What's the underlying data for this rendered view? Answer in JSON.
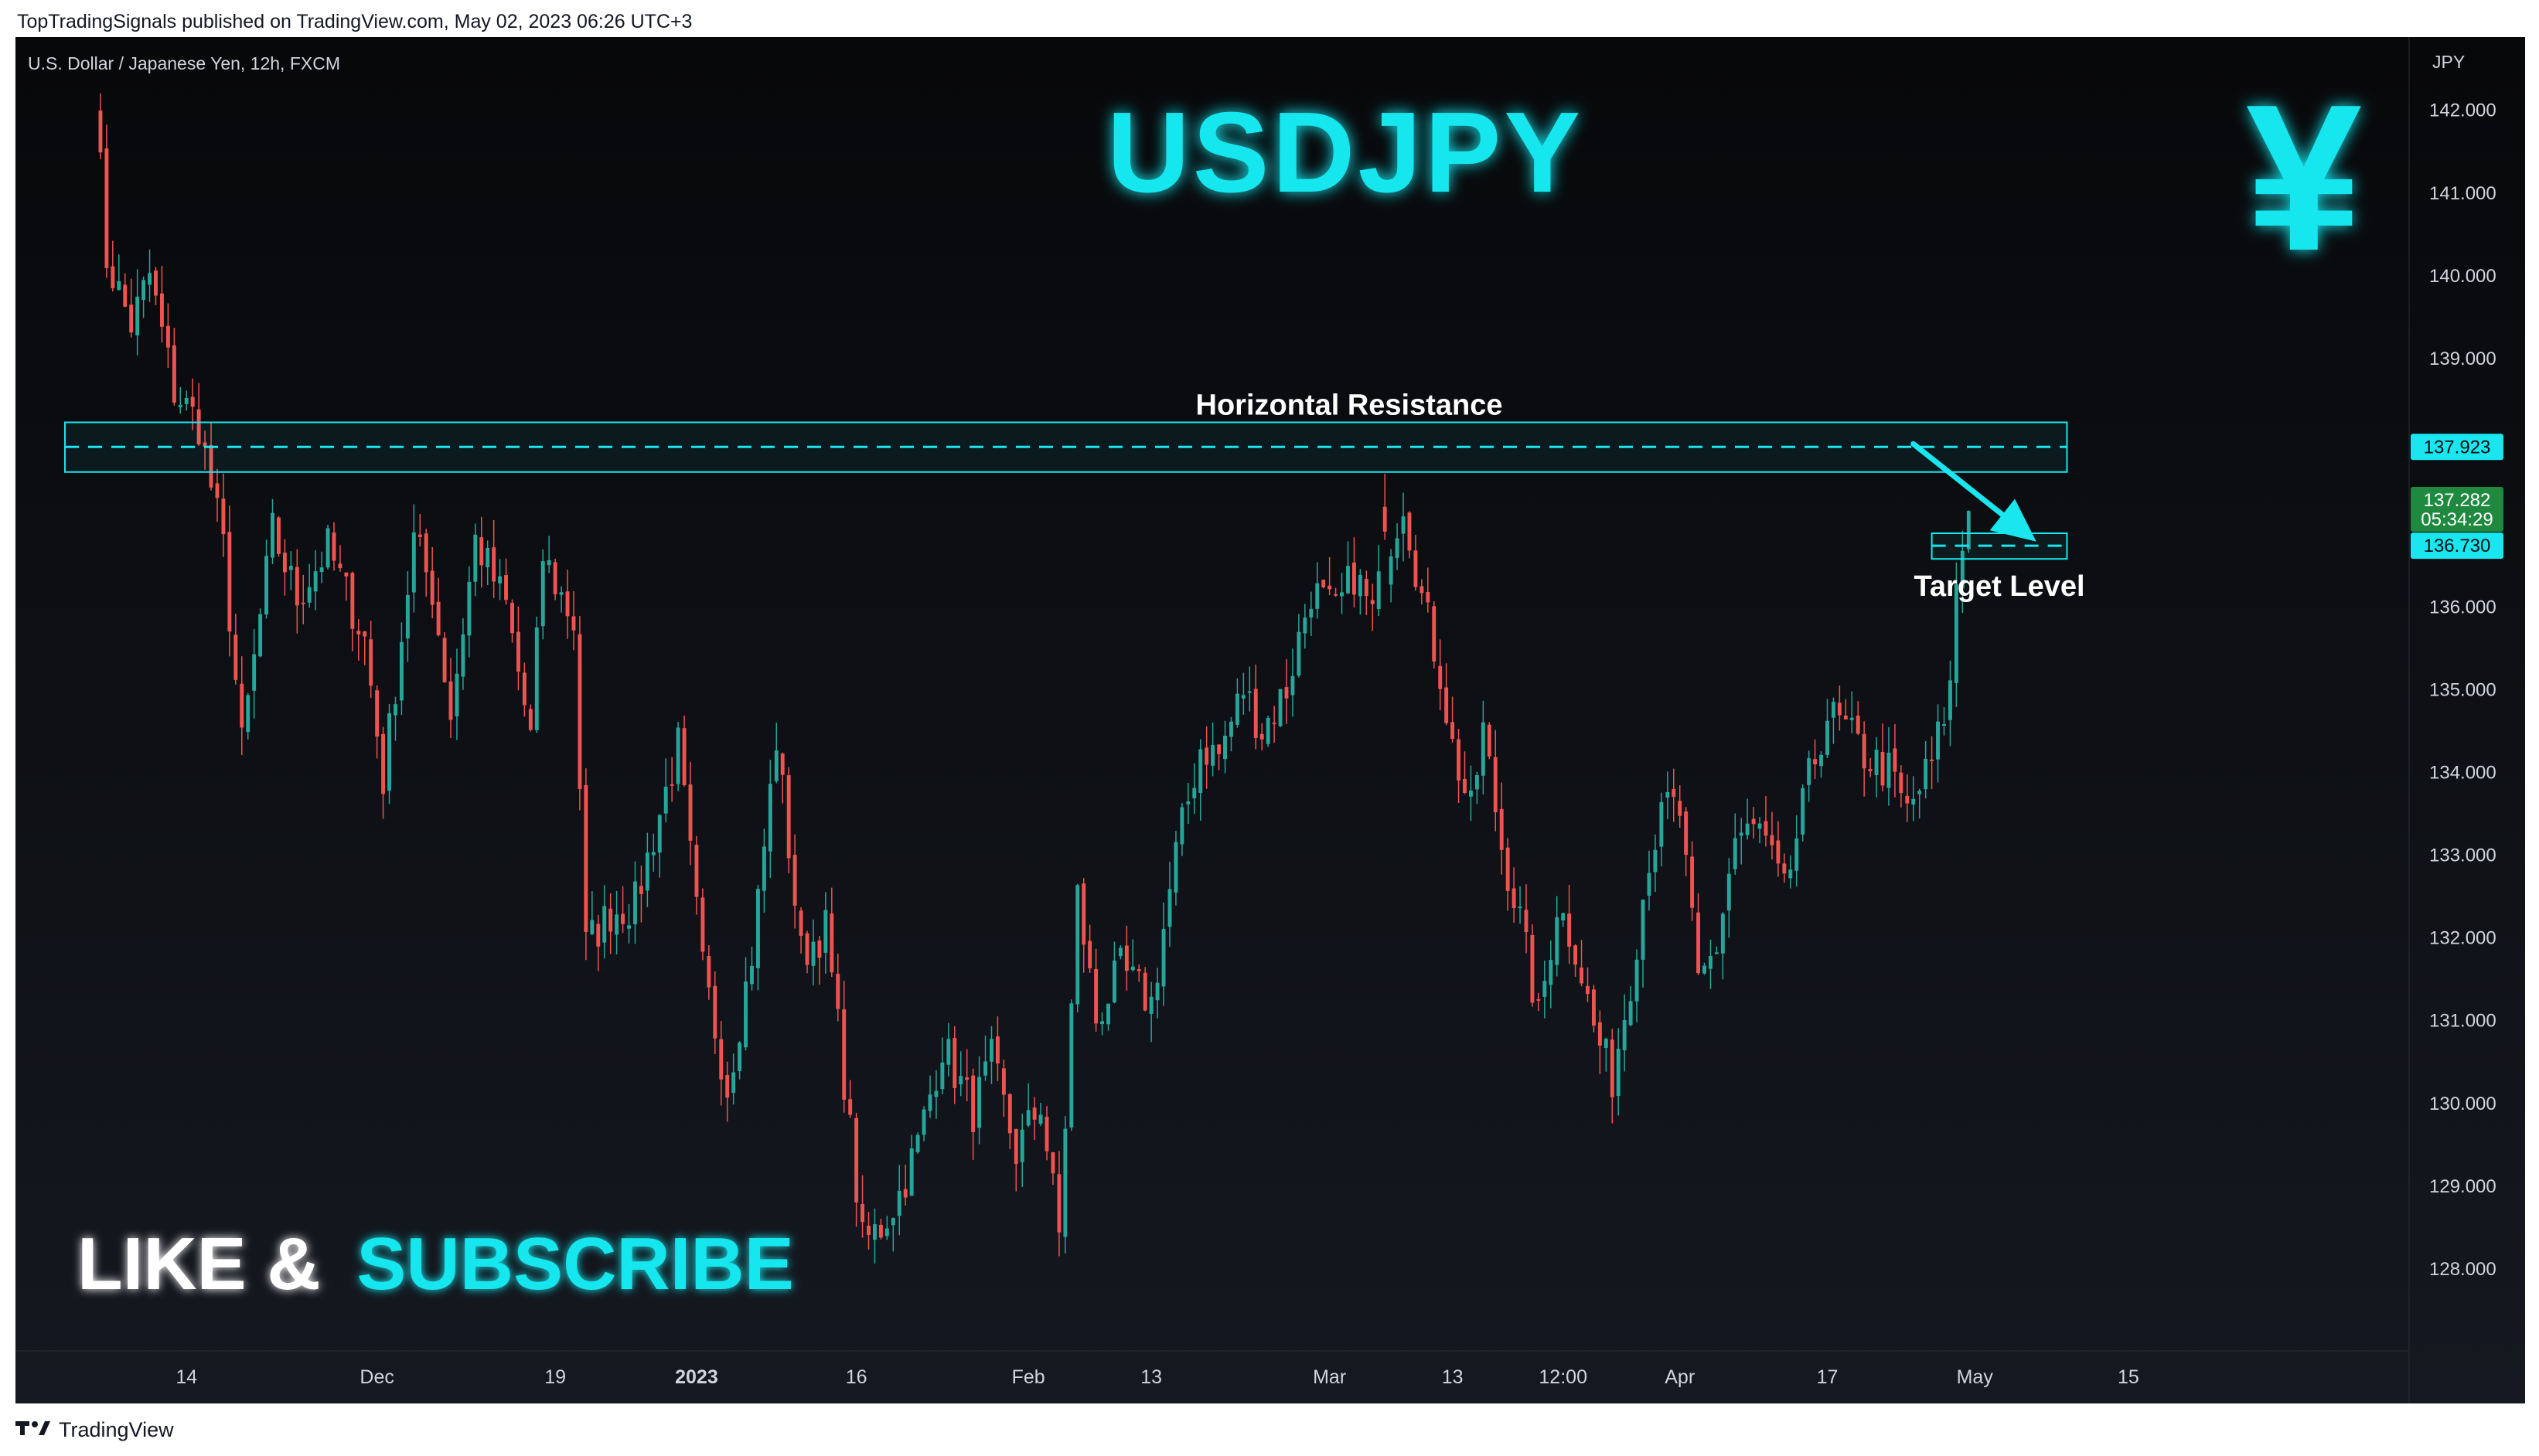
{
  "header": {
    "published": "TopTradingSignals published on TradingView.com, May 02, 2023 06:26 UTC+3"
  },
  "footer": {
    "logo_icon": "tradingview-logo-icon",
    "brand": "TradingView"
  },
  "colors": {
    "background": "#0e0f13",
    "up": "#26a69a",
    "down": "#ef5350",
    "accent": "#19e6ee",
    "text": "#d1d4dc",
    "last_price_badge": "#1f8a3f"
  },
  "chart_data": {
    "type": "candlestick",
    "symbol_label": "U.S. Dollar / Japanese Yen, 12h, FXCM",
    "title": "USDJPY",
    "currency_glyph": "¥",
    "currency_icon": "yen-icon",
    "promo": {
      "part1": "LIKE &",
      "part2": "SUBSCRIBE"
    },
    "y_axis": {
      "unit": "JPY",
      "range": [
        127.3,
        142.8
      ],
      "ticks": [
        "142.000",
        "141.000",
        "140.000",
        "139.000",
        "136.000",
        "135.000",
        "134.000",
        "133.000",
        "132.000",
        "131.000",
        "130.000",
        "129.000",
        "128.000"
      ]
    },
    "x_axis": {
      "range": [
        0,
        330
      ],
      "ticks": [
        {
          "label": "14",
          "x": 15
        },
        {
          "label": "Dec",
          "x": 46
        },
        {
          "label": "19",
          "x": 75
        },
        {
          "label": "2023",
          "x": 98
        },
        {
          "label": "16",
          "x": 124
        },
        {
          "label": "Feb",
          "x": 152
        },
        {
          "label": "13",
          "x": 172
        },
        {
          "label": "Mar",
          "x": 201
        },
        {
          "label": "13",
          "x": 221
        },
        {
          "label": "12:00",
          "x": 239
        },
        {
          "label": "Apr",
          "x": 258
        },
        {
          "label": "17",
          "x": 282
        },
        {
          "label": "May",
          "x": 306
        },
        {
          "label": "15",
          "x": 331
        }
      ]
    },
    "candles": [],
    "anchors": [
      [
        0,
        142.3
      ],
      [
        2,
        140.2
      ],
      [
        6,
        139.4
      ],
      [
        9,
        140.0
      ],
      [
        13,
        138.6
      ],
      [
        17,
        138.2
      ],
      [
        21,
        136.7
      ],
      [
        24,
        134.3
      ],
      [
        29,
        136.9
      ],
      [
        33,
        136.1
      ],
      [
        38,
        136.7
      ],
      [
        44,
        135.6
      ],
      [
        47,
        133.9
      ],
      [
        52,
        136.8
      ],
      [
        55,
        136.2
      ],
      [
        58,
        134.7
      ],
      [
        62,
        136.8
      ],
      [
        67,
        136.0
      ],
      [
        71,
        134.4
      ],
      [
        73,
        136.6
      ],
      [
        78,
        135.8
      ],
      [
        80,
        131.9
      ],
      [
        84,
        132.3
      ],
      [
        88,
        132.4
      ],
      [
        92,
        133.5
      ],
      [
        95,
        134.3
      ],
      [
        99,
        131.6
      ],
      [
        103,
        130.2
      ],
      [
        107,
        131.8
      ],
      [
        111,
        134.4
      ],
      [
        115,
        131.8
      ],
      [
        119,
        132.1
      ],
      [
        122,
        130.3
      ],
      [
        125,
        128.3
      ],
      [
        128,
        128.5
      ],
      [
        131,
        128.9
      ],
      [
        134,
        129.5
      ],
      [
        138,
        130.7
      ],
      [
        143,
        129.9
      ],
      [
        146,
        130.5
      ],
      [
        150,
        129.4
      ],
      [
        154,
        130.0
      ],
      [
        157,
        128.4
      ],
      [
        160,
        132.5
      ],
      [
        163,
        131.0
      ],
      [
        167,
        131.6
      ],
      [
        172,
        131.2
      ],
      [
        176,
        133.0
      ],
      [
        180,
        134.3
      ],
      [
        183,
        134.2
      ],
      [
        187,
        135.0
      ],
      [
        190,
        134.5
      ],
      [
        194,
        135.0
      ],
      [
        198,
        136.2
      ],
      [
        202,
        135.9
      ],
      [
        205,
        136.4
      ],
      [
        208,
        135.9
      ],
      [
        211,
        136.8
      ],
      [
        213,
        137.3
      ],
      [
        216,
        136.1
      ],
      [
        219,
        135.2
      ],
      [
        221,
        134.3
      ],
      [
        224,
        133.5
      ],
      [
        226,
        134.5
      ],
      [
        229,
        133.1
      ],
      [
        232,
        132.2
      ],
      [
        235,
        131.0
      ],
      [
        238,
        132.4
      ],
      [
        241,
        131.9
      ],
      [
        244,
        130.9
      ],
      [
        247,
        130.3
      ],
      [
        250,
        131.5
      ],
      [
        253,
        133.0
      ],
      [
        256,
        133.6
      ],
      [
        258,
        133.5
      ],
      [
        261,
        131.4
      ],
      [
        264,
        131.9
      ],
      [
        267,
        133.2
      ],
      [
        271,
        133.3
      ],
      [
        275,
        132.5
      ],
      [
        279,
        133.9
      ],
      [
        282,
        134.7
      ],
      [
        285,
        134.5
      ],
      [
        288,
        134.2
      ],
      [
        292,
        134.0
      ],
      [
        295,
        133.5
      ],
      [
        299,
        134.1
      ],
      [
        302,
        135.0
      ],
      [
        303,
        136.3
      ],
      [
        305,
        137.15
      ]
    ],
    "special_candles": [
      {
        "i": 210,
        "o": 137.2,
        "h": 137.6,
        "l": 136.8,
        "c": 136.9
      }
    ],
    "resistance": {
      "label": "Horizontal Resistance",
      "price": 137.923,
      "price_label": "137.923",
      "zone": [
        137.62,
        138.22
      ],
      "x_range": [
        0,
        321
      ]
    },
    "target": {
      "label": "Target Level",
      "price": 136.73,
      "price_label": "136.730",
      "zone": [
        136.57,
        136.88
      ],
      "x_range": [
        299,
        321
      ]
    },
    "arrow": {
      "from": [
        296,
        137.96
      ],
      "to": [
        316,
        136.78
      ]
    },
    "last_price": {
      "price": 137.282,
      "price_label": "137.282",
      "countdown": "05:34:29"
    },
    "grid": false,
    "legend": "none"
  }
}
